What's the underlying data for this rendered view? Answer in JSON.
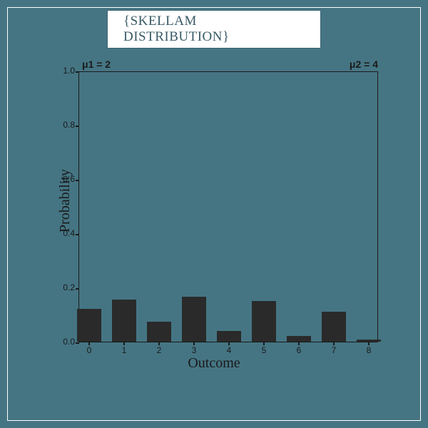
{
  "title": "{SKELLAM DISTRIBUTION}",
  "params": {
    "mu1_label": "μ1 = 2",
    "mu2_label": "μ2 = 4"
  },
  "chart": {
    "type": "bar",
    "background_color": "#457583",
    "frame_color": "#ffffff",
    "axis_color": "#1a1a1a",
    "bar_color": "#2a2a2a",
    "xlabel": "Outcome",
    "ylabel": "Probability",
    "xlabel_fontsize": 20,
    "ylabel_fontsize": 20,
    "tick_fontsize": 12,
    "ylim": [
      0.0,
      1.0
    ],
    "ytick_step": 0.2,
    "yticks": [
      "0.0",
      "0.2",
      "0.4",
      "0.6",
      "0.8",
      "1.0"
    ],
    "categories": [
      "0",
      "1",
      "2",
      "3",
      "4",
      "5",
      "6",
      "7",
      "8"
    ],
    "values": [
      0.12,
      0.155,
      0.075,
      0.165,
      0.04,
      0.15,
      0.02,
      0.11,
      0.008
    ],
    "bar_width": 0.7
  }
}
